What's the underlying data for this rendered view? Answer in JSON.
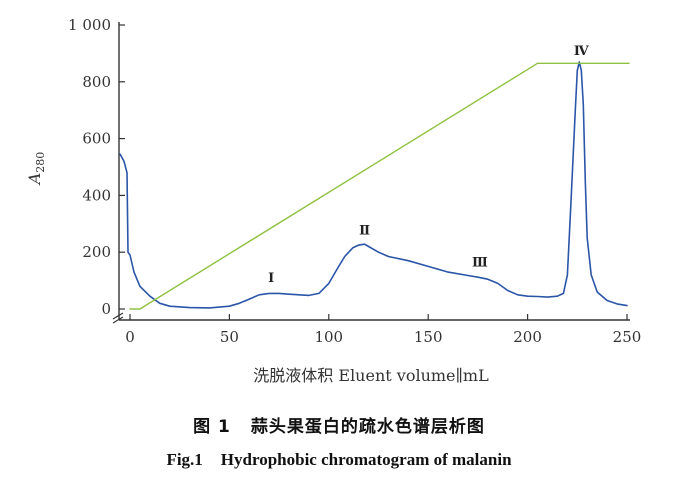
{
  "chart_data": {
    "type": "line",
    "title": "",
    "x_axis": {
      "label": "洗脱液体积 Eluent volume∥mL",
      "range": [
        0,
        250
      ],
      "ticks": [
        "0",
        "50",
        "100",
        "150",
        "200",
        "250"
      ]
    },
    "y_axis": {
      "label_main": "A",
      "label_sub": "280",
      "range": [
        0,
        1000
      ],
      "ticks": [
        "0",
        "200",
        "400",
        "600",
        "800",
        "1 000"
      ]
    },
    "grid": false,
    "series": [
      {
        "color": "#2b55a8",
        "x": [
          -5,
          -3,
          -1.5,
          -1,
          0,
          2,
          5,
          10,
          15,
          20,
          30,
          40,
          50,
          55,
          60,
          65,
          70,
          75,
          80,
          85,
          90,
          95,
          100,
          105,
          108,
          112,
          115,
          118,
          120,
          125,
          130,
          140,
          150,
          160,
          170,
          175,
          180,
          185,
          190,
          195,
          200,
          205,
          210,
          215,
          218,
          220,
          222,
          224,
          225,
          226,
          227,
          228,
          229,
          230,
          232,
          235,
          240,
          245,
          250
        ],
        "y": [
          545,
          520,
          480,
          200,
          190,
          130,
          80,
          45,
          20,
          10,
          5,
          4,
          10,
          20,
          35,
          50,
          55,
          55,
          52,
          50,
          48,
          55,
          90,
          150,
          185,
          215,
          225,
          228,
          220,
          200,
          185,
          170,
          150,
          130,
          118,
          112,
          105,
          90,
          65,
          50,
          45,
          44,
          42,
          45,
          55,
          120,
          400,
          700,
          840,
          870,
          840,
          720,
          450,
          250,
          120,
          60,
          30,
          18,
          12
        ]
      },
      {
        "color": "#8fc142",
        "x": [
          0,
          5,
          205,
          251
        ],
        "y": [
          0,
          0,
          865,
          865
        ]
      }
    ],
    "annotations": [
      {
        "text": "Ⅰ",
        "x": 71,
        "y": 95
      },
      {
        "text": "Ⅱ",
        "x": 118,
        "y": 262
      },
      {
        "text": "Ⅲ",
        "x": 176,
        "y": 150
      },
      {
        "text": "Ⅳ",
        "x": 227,
        "y": 895
      }
    ]
  },
  "caption": {
    "cn_num": "图 1",
    "cn_text": "蒜头果蛋白的疏水色谱层析图",
    "en_num": "Fig.1",
    "en_text": "Hydrophobic chromatogram of malanin"
  }
}
